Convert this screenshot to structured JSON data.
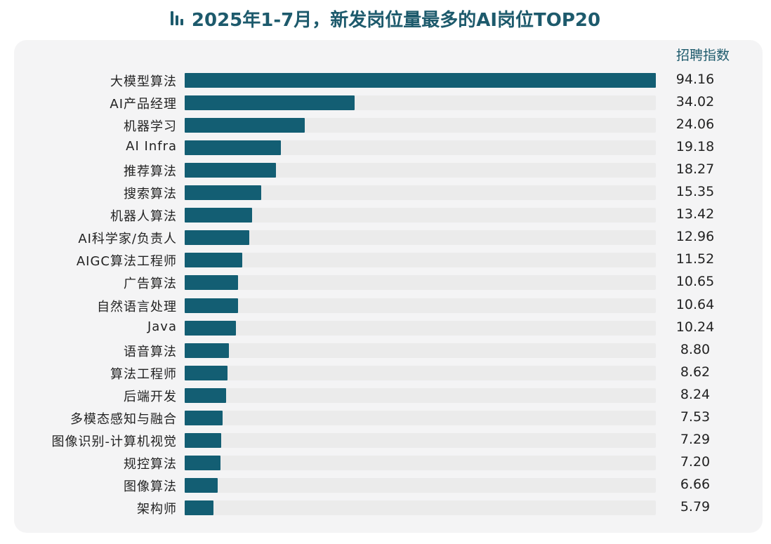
{
  "title": "2025年1-7月，新发岗位量最多的AI岗位TOP20",
  "value_header": "招聘指数",
  "colors": {
    "bar": "#135e73",
    "title": "#1d5a6c",
    "track": "#ebebeb",
    "card": "#f4f4f5"
  },
  "chart_data": {
    "type": "bar",
    "orientation": "horizontal",
    "title": "2025年1-7月，新发岗位量最多的AI岗位TOP20",
    "xlabel": "",
    "ylabel": "",
    "value_label": "招聘指数",
    "grid": false,
    "legend": null,
    "xlim": [
      0,
      94.16
    ],
    "categories": [
      "大模型算法",
      "AI产品经理",
      "机器学习",
      "AI Infra",
      "推荐算法",
      "搜索算法",
      "机器人算法",
      "AI科学家/负责人",
      "AIGC算法工程师",
      "广告算法",
      "自然语言处理",
      "Java",
      "语音算法",
      "算法工程师",
      "后端开发",
      "多模态感知与融合",
      "图像识别-计算机视觉",
      "规控算法",
      "图像算法",
      "架构师"
    ],
    "values": [
      94.16,
      34.02,
      24.06,
      19.18,
      18.27,
      15.35,
      13.42,
      12.96,
      11.52,
      10.65,
      10.64,
      10.24,
      8.8,
      8.62,
      8.24,
      7.53,
      7.29,
      7.2,
      6.66,
      5.79
    ],
    "value_labels": [
      "94.16",
      "34.02",
      "24.06",
      "19.18",
      "18.27",
      "15.35",
      "13.42",
      "12.96",
      "11.52",
      "10.65",
      "10.64",
      "10.24",
      "8.80",
      "8.62",
      "8.24",
      "7.53",
      "7.29",
      "7.20",
      "6.66",
      "5.79"
    ]
  }
}
